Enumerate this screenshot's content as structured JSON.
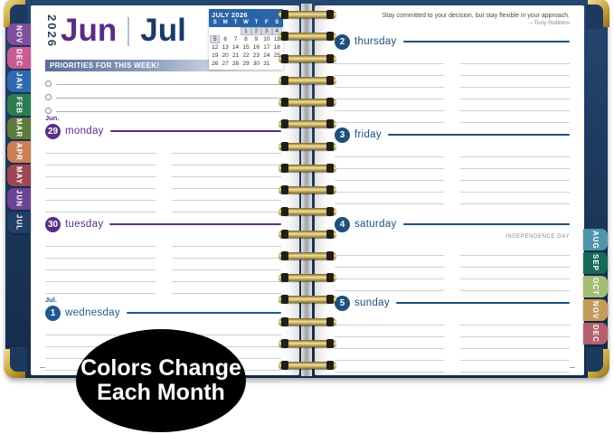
{
  "colors": {
    "cover_navy": "#1d3a5e",
    "gold": "#c8a63e",
    "cal_blue": "#2a64a8",
    "jun_purple": "#5b2d82",
    "jul_blue": "#1e4f7d",
    "banner_dark": "#5a6e96",
    "line_gray": "#ccd1d7"
  },
  "header": {
    "year": "2026",
    "month_left": "Jun",
    "month_right": "Jul"
  },
  "mini_calendar": {
    "title": "JULY 2026",
    "day_headers": [
      "S",
      "M",
      "T",
      "W",
      "T",
      "F",
      "S"
    ],
    "weeks": [
      [
        "",
        "",
        "",
        "1",
        "2",
        "3",
        "4"
      ],
      [
        "5",
        "6",
        "7",
        "8",
        "9",
        "10",
        "11"
      ],
      [
        "12",
        "13",
        "14",
        "15",
        "16",
        "17",
        "18"
      ],
      [
        "19",
        "20",
        "21",
        "22",
        "23",
        "24",
        "25"
      ],
      [
        "26",
        "27",
        "28",
        "29",
        "30",
        "31",
        ""
      ]
    ],
    "highlighted": [
      "1",
      "2",
      "3",
      "4",
      "5"
    ]
  },
  "priorities": {
    "title": "PRIORITIES FOR THIS WEEK!"
  },
  "quote": {
    "text": "Stay committed to your decision, but stay flexible in your approach.",
    "author": "– Tony Robbins"
  },
  "left_page": {
    "days": [
      {
        "month_label": "Jun.",
        "number": "29",
        "name": "monday",
        "color": "#5b2d82"
      },
      {
        "month_label": "",
        "number": "30",
        "name": "tuesday",
        "color": "#5b2d82"
      },
      {
        "month_label": "Jul.",
        "number": "1",
        "name": "wednesday",
        "color": "#1e5a8d"
      }
    ]
  },
  "right_page": {
    "days": [
      {
        "number": "2",
        "name": "thursday",
        "color": "#1e4f7d",
        "note": ""
      },
      {
        "number": "3",
        "name": "friday",
        "color": "#1e4f7d",
        "note": ""
      },
      {
        "number": "4",
        "name": "saturday",
        "color": "#1e4f7d",
        "note": "INDEPENDENCE DAY"
      },
      {
        "number": "5",
        "name": "sunday",
        "color": "#1e4f7d",
        "note": ""
      }
    ]
  },
  "tabs_left": [
    {
      "label": "NOV",
      "color": "#7e4f9d"
    },
    {
      "label": "DEC",
      "color": "#c75b94"
    },
    {
      "label": "JAN",
      "color": "#2e6ab2"
    },
    {
      "label": "FEB",
      "color": "#2e7d52"
    },
    {
      "label": "MAR",
      "color": "#5e7a3d"
    },
    {
      "label": "APR",
      "color": "#cc7f55"
    },
    {
      "label": "MAY",
      "color": "#9e4653"
    },
    {
      "label": "JUN",
      "color": "#6b4496"
    },
    {
      "label": "JUL",
      "color": "#223f66"
    }
  ],
  "tabs_right": [
    {
      "label": "AUG",
      "color": "#4f96aa"
    },
    {
      "label": "SEP",
      "color": "#17695c"
    },
    {
      "label": "OCT",
      "color": "#a3bd74"
    },
    {
      "label": "NOV",
      "color": "#c49a5d"
    },
    {
      "label": "DEC",
      "color": "#b2616d"
    }
  ],
  "badge": {
    "line1": "Colors Change",
    "line2": "Each Month"
  }
}
